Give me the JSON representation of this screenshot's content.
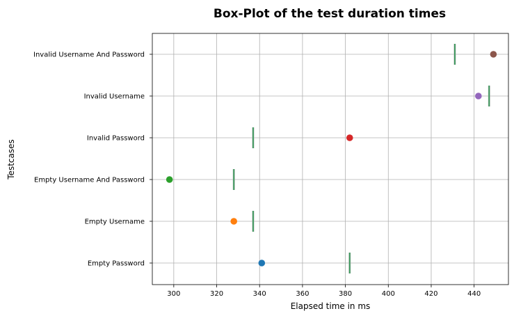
{
  "chart_data": {
    "type": "box",
    "title": "Box-Plot of the test duration times",
    "xlabel": "Elapsed time in ms",
    "ylabel": "Testcases",
    "xlim": [
      290,
      456
    ],
    "xticks": [
      300,
      320,
      340,
      360,
      380,
      400,
      420,
      440
    ],
    "grid": true,
    "categories": [
      "Empty Password",
      "Empty Username",
      "Empty Username And Password",
      "Invalid Password",
      "Invalid Username",
      "Invalid Username And Password"
    ],
    "medians": [
      382,
      337,
      328,
      337,
      447,
      431
    ],
    "outliers": [
      341,
      328,
      298,
      382,
      442,
      449
    ],
    "median_color": "#3a9a5c",
    "outlier_colors": [
      "#1f77b4",
      "#ff7f0e",
      "#2ca02c",
      "#d62728",
      "#9467bd",
      "#8c564b"
    ]
  }
}
